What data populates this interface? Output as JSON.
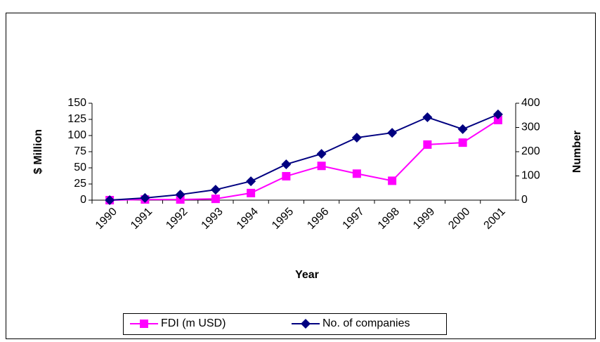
{
  "chart_data": {
    "type": "line",
    "categories": [
      "1990",
      "1991",
      "1992",
      "1993",
      "1994",
      "1995",
      "1996",
      "1997",
      "1998",
      "1999",
      "2000",
      "2001"
    ],
    "series": [
      {
        "name": "FDI (m USD)",
        "color": "#ff00ff",
        "marker": "square",
        "axis": "y",
        "values": [
          0,
          1,
          1,
          2,
          11,
          37,
          53,
          41,
          30,
          86,
          89,
          124
        ]
      },
      {
        "name": "No. of companies",
        "color": "#000080",
        "marker": "diamond",
        "axis": "y2",
        "values": [
          0,
          9,
          23,
          43,
          78,
          148,
          191,
          258,
          278,
          342,
          293,
          354
        ]
      }
    ],
    "xlabel": "Year",
    "ylabel": "$ Million",
    "y2label": "Number",
    "ylim": [
      0,
      150
    ],
    "yticks": [
      0,
      25,
      50,
      75,
      100,
      125,
      150
    ],
    "y2lim": [
      0,
      400
    ],
    "y2ticks": [
      0,
      100,
      200,
      300,
      400
    ]
  }
}
